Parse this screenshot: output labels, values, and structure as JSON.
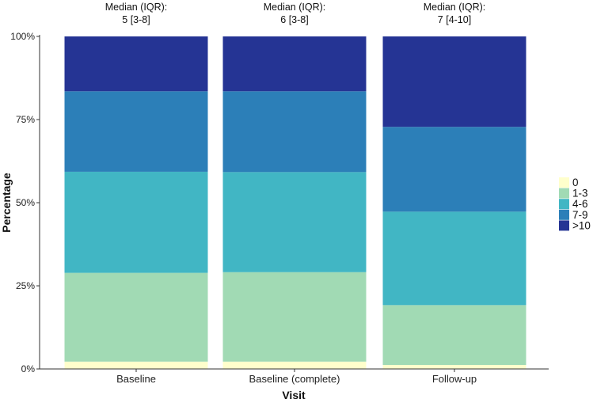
{
  "chart_data": {
    "type": "bar",
    "stacked": true,
    "normalized": true,
    "xlabel": "Visit",
    "ylabel": "Percentage",
    "ylim": [
      0,
      1
    ],
    "y_ticks": [
      {
        "value": 0,
        "label": "0%"
      },
      {
        "value": 0.25,
        "label": "25%"
      },
      {
        "value": 0.5,
        "label": "50%"
      },
      {
        "value": 0.75,
        "label": "75%"
      },
      {
        "value": 1,
        "label": "100%"
      }
    ],
    "categories": [
      "Baseline",
      "Baseline (complete)",
      "Follow-up"
    ],
    "annotations": [
      {
        "line1": "Median (IQR):",
        "line2": "5 [3-8]"
      },
      {
        "line1": "Median (IQR):",
        "line2": "6 [3-8]"
      },
      {
        "line1": "Median (IQR):",
        "line2": "7 [4-10]"
      }
    ],
    "series": [
      {
        "name": "0",
        "color": "#ffffcc",
        "values": [
          0.022,
          0.022,
          0.012
        ]
      },
      {
        "name": "1-3",
        "color": "#a1dab4",
        "values": [
          0.267,
          0.269,
          0.18
        ]
      },
      {
        "name": "4-6",
        "color": "#41b6c4",
        "values": [
          0.304,
          0.301,
          0.281
        ]
      },
      {
        "name": "7-9",
        "color": "#2c7fb8",
        "values": [
          0.242,
          0.243,
          0.255
        ]
      },
      {
        "name": ">10",
        "color": "#253494",
        "values": [
          0.165,
          0.165,
          0.272
        ]
      }
    ],
    "legend_position": "right",
    "grid": false
  }
}
